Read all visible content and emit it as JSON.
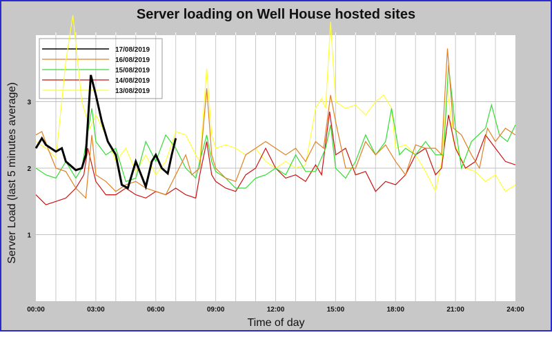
{
  "chart_data": {
    "type": "line",
    "title": "Server loading on Well House hosted sites",
    "xlabel": "Time of day",
    "ylabel": "Server Load (last 5 minutes average)",
    "xlim": [
      0,
      24
    ],
    "ylim": [
      0,
      4
    ],
    "x_ticks": [
      0,
      3,
      6,
      9,
      12,
      15,
      18,
      21,
      24
    ],
    "x_tick_labels": [
      "00:00",
      "03:00",
      "06:00",
      "09:00",
      "12:00",
      "15:00",
      "18:00",
      "21:00",
      "24:00"
    ],
    "y_ticks": [
      1,
      2,
      3
    ],
    "y_tick_labels": [
      "1",
      "2",
      "3"
    ],
    "grid": true,
    "legend_position": "top-left",
    "series": [
      {
        "name": "17/08/2019",
        "color": "#000000",
        "points": [
          [
            0,
            2.3
          ],
          [
            0.3,
            2.45
          ],
          [
            0.5,
            2.35
          ],
          [
            1,
            2.25
          ],
          [
            1.3,
            2.3
          ],
          [
            1.5,
            2.1
          ],
          [
            2,
            1.97
          ],
          [
            2.3,
            2.0
          ],
          [
            2.5,
            2.2
          ],
          [
            2.75,
            3.4
          ],
          [
            3,
            3.1
          ],
          [
            3.3,
            2.7
          ],
          [
            3.6,
            2.4
          ],
          [
            4,
            2.2
          ],
          [
            4.3,
            1.75
          ],
          [
            4.6,
            1.7
          ],
          [
            5,
            2.1
          ],
          [
            5.2,
            1.95
          ],
          [
            5.5,
            1.72
          ],
          [
            5.8,
            2.1
          ],
          [
            6,
            2.2
          ],
          [
            6.3,
            2.0
          ],
          [
            6.6,
            1.92
          ],
          [
            6.8,
            2.2
          ],
          [
            7,
            2.45
          ]
        ]
      },
      {
        "name": "16/08/2019",
        "color": "#e08020",
        "points": [
          [
            0,
            2.5
          ],
          [
            0.3,
            2.55
          ],
          [
            0.6,
            2.3
          ],
          [
            1,
            2.0
          ],
          [
            1.5,
            1.95
          ],
          [
            2,
            1.7
          ],
          [
            2.5,
            1.55
          ],
          [
            2.8,
            2.5
          ],
          [
            3,
            1.9
          ],
          [
            3.5,
            1.8
          ],
          [
            4,
            1.65
          ],
          [
            4.5,
            1.75
          ],
          [
            5,
            1.8
          ],
          [
            5.5,
            1.7
          ],
          [
            6,
            1.65
          ],
          [
            6.5,
            1.6
          ],
          [
            7,
            1.9
          ],
          [
            7.5,
            2.2
          ],
          [
            7.8,
            1.9
          ],
          [
            8.2,
            2.0
          ],
          [
            8.55,
            3.2
          ],
          [
            8.8,
            2.2
          ],
          [
            9,
            2.0
          ],
          [
            9.5,
            1.85
          ],
          [
            10,
            1.8
          ],
          [
            10.5,
            2.2
          ],
          [
            11,
            2.3
          ],
          [
            11.5,
            2.4
          ],
          [
            12,
            2.3
          ],
          [
            12.5,
            2.2
          ],
          [
            13,
            2.3
          ],
          [
            13.5,
            2.1
          ],
          [
            14,
            2.4
          ],
          [
            14.4,
            2.3
          ],
          [
            14.75,
            3.1
          ],
          [
            15,
            2.7
          ],
          [
            15.5,
            2.0
          ],
          [
            16,
            2.0
          ],
          [
            16.5,
            2.4
          ],
          [
            17,
            2.2
          ],
          [
            17.5,
            2.35
          ],
          [
            18,
            2.1
          ],
          [
            18.5,
            1.9
          ],
          [
            19,
            2.35
          ],
          [
            19.5,
            2.3
          ],
          [
            20,
            2.3
          ],
          [
            20.3,
            2.2
          ],
          [
            20.6,
            3.8
          ],
          [
            20.9,
            2.6
          ],
          [
            21.3,
            2.5
          ],
          [
            21.8,
            2.2
          ],
          [
            22.2,
            2.0
          ],
          [
            22.6,
            2.6
          ],
          [
            23,
            2.4
          ],
          [
            23.5,
            2.6
          ],
          [
            24,
            2.5
          ]
        ]
      },
      {
        "name": "15/08/2019",
        "color": "#33dd33",
        "points": [
          [
            0,
            2.0
          ],
          [
            0.5,
            1.9
          ],
          [
            1,
            1.85
          ],
          [
            1.5,
            2.1
          ],
          [
            2,
            1.85
          ],
          [
            2.3,
            2.0
          ],
          [
            2.8,
            2.9
          ],
          [
            3,
            2.4
          ],
          [
            3.5,
            2.2
          ],
          [
            4,
            2.3
          ],
          [
            4.5,
            1.8
          ],
          [
            5,
            1.85
          ],
          [
            5.5,
            2.4
          ],
          [
            6,
            2.1
          ],
          [
            6.5,
            2.5
          ],
          [
            7,
            2.3
          ],
          [
            7.5,
            2.0
          ],
          [
            8,
            1.85
          ],
          [
            8.2,
            2.1
          ],
          [
            8.55,
            2.5
          ],
          [
            8.8,
            2.1
          ],
          [
            9,
            1.95
          ],
          [
            9.5,
            1.85
          ],
          [
            10,
            1.7
          ],
          [
            10.5,
            1.7
          ],
          [
            11,
            1.85
          ],
          [
            11.5,
            1.9
          ],
          [
            12,
            2.0
          ],
          [
            12.5,
            1.9
          ],
          [
            13,
            2.2
          ],
          [
            13.5,
            1.95
          ],
          [
            14,
            1.95
          ],
          [
            14.5,
            2.3
          ],
          [
            14.75,
            2.65
          ],
          [
            15,
            2.0
          ],
          [
            15.5,
            1.85
          ],
          [
            16,
            2.1
          ],
          [
            16.5,
            2.5
          ],
          [
            17,
            2.2
          ],
          [
            17.5,
            2.4
          ],
          [
            17.8,
            2.9
          ],
          [
            18.2,
            2.2
          ],
          [
            18.5,
            2.3
          ],
          [
            19,
            2.2
          ],
          [
            19.5,
            2.4
          ],
          [
            20,
            2.2
          ],
          [
            20.4,
            2.2
          ],
          [
            20.65,
            3.55
          ],
          [
            21,
            2.6
          ],
          [
            21.3,
            2.0
          ],
          [
            21.8,
            2.4
          ],
          [
            22.5,
            2.6
          ],
          [
            22.8,
            2.95
          ],
          [
            23.2,
            2.5
          ],
          [
            23.6,
            2.4
          ],
          [
            24,
            2.65
          ]
        ]
      },
      {
        "name": "14/08/2019",
        "color": "#cc1111",
        "points": [
          [
            0,
            1.6
          ],
          [
            0.5,
            1.45
          ],
          [
            1,
            1.5
          ],
          [
            1.5,
            1.55
          ],
          [
            2,
            1.7
          ],
          [
            2.4,
            1.9
          ],
          [
            2.6,
            2.3
          ],
          [
            3,
            1.8
          ],
          [
            3.5,
            1.6
          ],
          [
            4,
            1.6
          ],
          [
            4.5,
            1.7
          ],
          [
            5,
            1.6
          ],
          [
            5.5,
            1.55
          ],
          [
            6,
            1.65
          ],
          [
            6.5,
            1.6
          ],
          [
            7,
            1.7
          ],
          [
            7.5,
            1.6
          ],
          [
            8,
            1.55
          ],
          [
            8.2,
            1.9
          ],
          [
            8.55,
            2.4
          ],
          [
            8.8,
            1.9
          ],
          [
            9,
            1.8
          ],
          [
            9.5,
            1.7
          ],
          [
            10,
            1.65
          ],
          [
            10.5,
            1.9
          ],
          [
            11,
            2.0
          ],
          [
            11.5,
            2.3
          ],
          [
            12,
            2.0
          ],
          [
            12.5,
            1.85
          ],
          [
            13,
            1.9
          ],
          [
            13.5,
            1.8
          ],
          [
            14,
            2.05
          ],
          [
            14.3,
            1.9
          ],
          [
            14.7,
            2.85
          ],
          [
            15,
            2.2
          ],
          [
            15.5,
            2.3
          ],
          [
            16,
            1.9
          ],
          [
            16.5,
            1.95
          ],
          [
            17,
            1.65
          ],
          [
            17.5,
            1.8
          ],
          [
            18,
            1.75
          ],
          [
            18.5,
            1.9
          ],
          [
            19,
            2.2
          ],
          [
            19.5,
            2.3
          ],
          [
            20,
            1.9
          ],
          [
            20.3,
            2.0
          ],
          [
            20.65,
            2.8
          ],
          [
            21,
            2.3
          ],
          [
            21.5,
            2.0
          ],
          [
            22,
            2.1
          ],
          [
            22.5,
            2.5
          ],
          [
            23,
            2.3
          ],
          [
            23.5,
            2.1
          ],
          [
            24,
            2.05
          ]
        ]
      },
      {
        "name": "13/08/2019",
        "color": "#ffff33",
        "points": [
          [
            0,
            2.4
          ],
          [
            0.5,
            2.3
          ],
          [
            1,
            2.15
          ],
          [
            1.5,
            3.6
          ],
          [
            1.85,
            4.3
          ],
          [
            2.3,
            3.0
          ],
          [
            2.7,
            2.6
          ],
          [
            3,
            2.8
          ],
          [
            3.5,
            2.5
          ],
          [
            4,
            2.1
          ],
          [
            4.5,
            2.3
          ],
          [
            5,
            1.95
          ],
          [
            5.5,
            2.2
          ],
          [
            6,
            1.9
          ],
          [
            6.5,
            2.1
          ],
          [
            7,
            2.55
          ],
          [
            7.5,
            2.5
          ],
          [
            8,
            2.2
          ],
          [
            8.2,
            2.1
          ],
          [
            8.55,
            3.5
          ],
          [
            8.8,
            2.5
          ],
          [
            9,
            2.3
          ],
          [
            9.5,
            2.35
          ],
          [
            10,
            2.3
          ],
          [
            10.5,
            2.2
          ],
          [
            11,
            2.3
          ],
          [
            11.5,
            2.1
          ],
          [
            12,
            2.0
          ],
          [
            12.5,
            2.1
          ],
          [
            13,
            2.0
          ],
          [
            13.5,
            2.05
          ],
          [
            14,
            2.9
          ],
          [
            14.3,
            3.05
          ],
          [
            14.5,
            2.9
          ],
          [
            14.75,
            4.2
          ],
          [
            15,
            3.0
          ],
          [
            15.5,
            2.9
          ],
          [
            16,
            2.95
          ],
          [
            16.5,
            2.8
          ],
          [
            17,
            3.0
          ],
          [
            17.4,
            3.1
          ],
          [
            17.8,
            2.9
          ],
          [
            18,
            2.3
          ],
          [
            18.5,
            2.35
          ],
          [
            19,
            2.2
          ],
          [
            19.5,
            1.95
          ],
          [
            20,
            1.65
          ],
          [
            20.3,
            2.1
          ],
          [
            20.6,
            3.2
          ],
          [
            20.9,
            2.4
          ],
          [
            21.5,
            2.0
          ],
          [
            22,
            1.95
          ],
          [
            22.5,
            1.8
          ],
          [
            23,
            1.9
          ],
          [
            23.5,
            1.65
          ],
          [
            24,
            1.75
          ]
        ]
      }
    ],
    "legend_order": [
      "17/08/2019",
      "16/08/2019",
      "15/08/2019",
      "14/08/2019",
      "13/08/2019"
    ]
  }
}
